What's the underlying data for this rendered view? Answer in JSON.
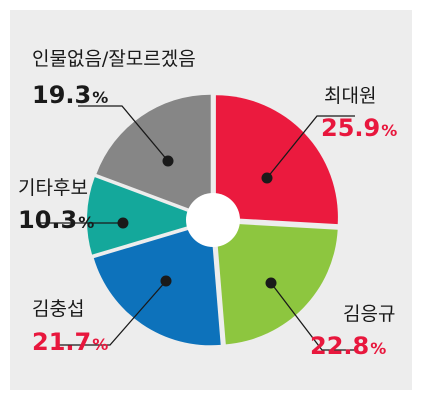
{
  "chart_data": {
    "type": "pie",
    "donut": true,
    "title": "",
    "slices": [
      {
        "name": "최대원",
        "value": 25.9,
        "display": "25.9",
        "unit": "%",
        "color": "#eb1a3e",
        "value_color": "#e8173d"
      },
      {
        "name": "김응규",
        "value": 22.8,
        "display": "22.8",
        "unit": "%",
        "color": "#8dc63f",
        "value_color": "#e8173d"
      },
      {
        "name": "김충섭",
        "value": 21.7,
        "display": "21.7",
        "unit": "%",
        "color": "#0d72bb",
        "value_color": "#e8173d"
      },
      {
        "name": "기타후보",
        "value": 10.3,
        "display": "10.3",
        "unit": "%",
        "color": "#14a89b",
        "value_color": "#1a1a1a"
      },
      {
        "name": "인물없음/잘모르겠음",
        "value": 19.3,
        "display": "19.3",
        "unit": "%",
        "color": "#868686",
        "value_color": "#1a1a1a"
      }
    ],
    "start": "12 o'clock",
    "direction": "clockwise"
  },
  "colors": {
    "background": "#ededed",
    "leader_line": "#1a1a1a",
    "gap": "#ffffff"
  }
}
